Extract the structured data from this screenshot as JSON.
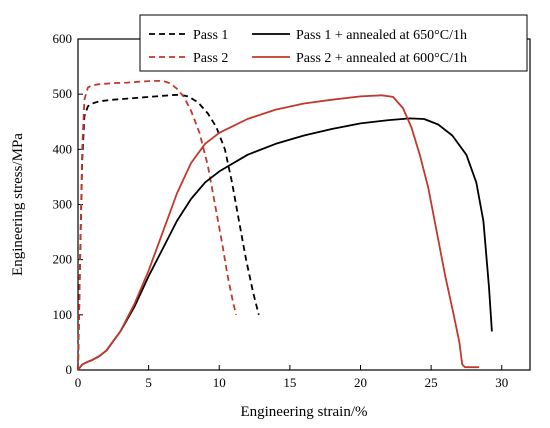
{
  "chart_data": {
    "type": "line",
    "title": "",
    "xlabel": "Engineering strain/%",
    "ylabel": "Engineering stress/MPa",
    "xlim": [
      0,
      32
    ],
    "ylim": [
      0,
      600
    ],
    "xticks": [
      0,
      5,
      10,
      15,
      20,
      25,
      30
    ],
    "yticks": [
      0,
      100,
      200,
      300,
      400,
      500,
      600
    ],
    "grid": false,
    "legend_position": "top-right",
    "series": [
      {
        "name": "Pass 1",
        "color": "#000000",
        "dash": "dashed",
        "x": [
          0,
          0.15,
          0.3,
          0.45,
          0.7,
          1,
          1.5,
          2.5,
          3.5,
          4.5,
          5.5,
          6.5,
          7.2,
          7.8,
          8.5,
          9.2,
          9.8,
          10.4,
          10.9,
          11.4,
          11.9,
          12.4,
          12.8
        ],
        "y": [
          0,
          200,
          380,
          460,
          478,
          483,
          487,
          490,
          492,
          494,
          496,
          498,
          499,
          496,
          485,
          465,
          440,
          400,
          340,
          270,
          200,
          140,
          100
        ]
      },
      {
        "name": "Pass 2",
        "color": "#c0392b",
        "dash": "dashed",
        "x": [
          0,
          0.15,
          0.3,
          0.45,
          0.7,
          1,
          1.5,
          2.5,
          3.5,
          4.5,
          5.5,
          6,
          6.5,
          7,
          7.5,
          8,
          8.6,
          9.2,
          9.7,
          10.2,
          10.6,
          11,
          11.2
        ],
        "y": [
          0,
          200,
          400,
          490,
          512,
          516,
          518,
          520,
          521,
          523,
          524,
          524,
          520,
          510,
          495,
          470,
          430,
          370,
          300,
          230,
          170,
          120,
          100
        ]
      },
      {
        "name": "Pass 1 + annealed at 650°C/1h",
        "color": "#000000",
        "dash": "solid",
        "x": [
          0,
          0.3,
          0.7,
          1,
          1.5,
          2,
          3,
          4,
          5,
          6,
          7,
          8,
          9,
          10,
          12,
          14,
          16,
          18,
          20,
          22,
          23.5,
          24.5,
          25.5,
          26.5,
          27.5,
          28.2,
          28.7,
          29.1,
          29.3
        ],
        "y": [
          0,
          10,
          15,
          18,
          25,
          35,
          70,
          115,
          170,
          220,
          270,
          310,
          340,
          360,
          390,
          410,
          425,
          437,
          447,
          453,
          456,
          455,
          445,
          425,
          390,
          340,
          270,
          150,
          70
        ]
      },
      {
        "name": "Pass 2 + annealed at 600°C/1h",
        "color": "#c0392b",
        "dash": "solid",
        "x": [
          0,
          0.3,
          0.7,
          1,
          1.5,
          2,
          3,
          4,
          5,
          6,
          7,
          8,
          9,
          10,
          12,
          14,
          16,
          18,
          20,
          21.5,
          22.3,
          23,
          23.6,
          24.2,
          24.8,
          25.4,
          26,
          26.6,
          27,
          27.2,
          27.4,
          28.4
        ],
        "y": [
          0,
          10,
          15,
          18,
          25,
          35,
          70,
          120,
          180,
          250,
          320,
          375,
          410,
          430,
          455,
          472,
          483,
          490,
          496,
          498,
          495,
          475,
          440,
          390,
          330,
          250,
          170,
          100,
          50,
          10,
          5,
          5
        ]
      }
    ]
  }
}
